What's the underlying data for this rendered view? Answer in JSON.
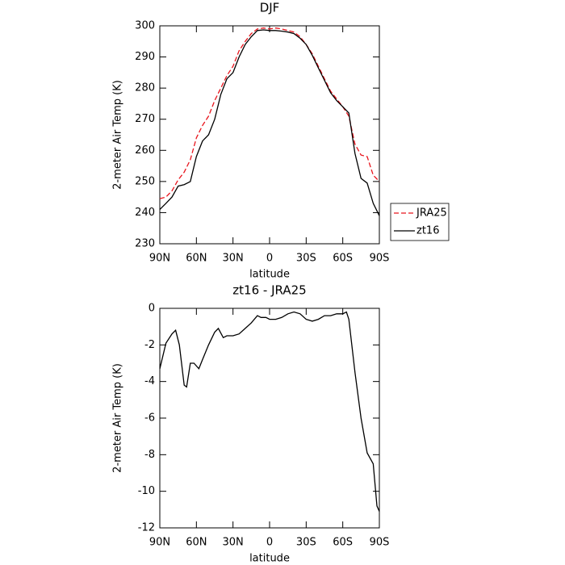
{
  "chart_data": [
    {
      "type": "line",
      "title": "DJF",
      "xlabel": "latitude",
      "ylabel": "2-meter Air Temp (K)",
      "x": [
        90,
        85,
        80,
        75,
        70,
        65,
        60,
        55,
        50,
        45,
        40,
        35,
        30,
        25,
        20,
        15,
        10,
        5,
        0,
        -5,
        -10,
        -15,
        -20,
        -25,
        -30,
        -35,
        -40,
        -45,
        -50,
        -55,
        -60,
        -65,
        -70,
        -75,
        -80,
        -85,
        -90
      ],
      "series": [
        {
          "name": "JRA25",
          "color": "#e8141c",
          "linestyle": "dashed",
          "values": [
            244.5,
            245,
            247,
            250.5,
            253,
            257,
            264,
            268,
            271,
            276,
            280,
            284,
            287,
            292,
            295,
            297.5,
            299,
            299.3,
            299,
            299.3,
            299,
            298.5,
            298,
            296.5,
            294,
            291,
            287,
            283,
            279,
            276.5,
            274,
            271,
            262,
            258.5,
            258,
            252,
            250
          ]
        },
        {
          "name": "zt16",
          "color": "#000000",
          "linestyle": "solid",
          "values": [
            241,
            243,
            245,
            248.5,
            249,
            250,
            258,
            263,
            265,
            270,
            278,
            283,
            285,
            290,
            294,
            296.5,
            298.5,
            298.7,
            298.5,
            298.5,
            298.3,
            298,
            297.5,
            296,
            294,
            290.5,
            286.5,
            282.5,
            278.5,
            276,
            274,
            272,
            259,
            251,
            249.5,
            243,
            239
          ]
        }
      ],
      "xlim": [
        90,
        -90
      ],
      "xticks": [
        {
          "value": 90,
          "label": "90N"
        },
        {
          "value": 60,
          "label": "60N"
        },
        {
          "value": 30,
          "label": "30N"
        },
        0,
        {
          "value": -30,
          "label": "30S"
        },
        {
          "value": -60,
          "label": "60S"
        },
        {
          "value": -90,
          "label": "90S"
        }
      ],
      "ylim": [
        230,
        300
      ],
      "yticks": [
        230,
        240,
        250,
        260,
        270,
        280,
        290,
        300
      ],
      "legend": "right"
    },
    {
      "type": "line",
      "title": "zt16 - JRA25",
      "xlabel": "latitude",
      "ylabel": "2-meter Air Temp (K)",
      "x": [
        90,
        85,
        80,
        77,
        74,
        70,
        68,
        65,
        62,
        58,
        55,
        50,
        45,
        42,
        38,
        35,
        30,
        25,
        20,
        15,
        10,
        7,
        3,
        0,
        -5,
        -10,
        -15,
        -20,
        -25,
        -30,
        -35,
        -40,
        -45,
        -50,
        -55,
        -60,
        -63,
        -65,
        -70,
        -75,
        -80,
        -85,
        -88,
        -90
      ],
      "values": [
        -3.3,
        -1.9,
        -1.4,
        -1.2,
        -2,
        -4.2,
        -4.3,
        -3,
        -3,
        -3.3,
        -2.8,
        -2,
        -1.3,
        -1.1,
        -1.6,
        -1.5,
        -1.5,
        -1.4,
        -1.1,
        -0.8,
        -0.4,
        -0.5,
        -0.5,
        -0.6,
        -0.6,
        -0.5,
        -0.3,
        -0.2,
        -0.3,
        -0.6,
        -0.7,
        -0.6,
        -0.4,
        -0.4,
        -0.3,
        -0.3,
        -0.2,
        -0.6,
        -3.5,
        -6,
        -7.9,
        -8.5,
        -10.8,
        -11.1
      ],
      "color": "#000000",
      "xlim": [
        90,
        -90
      ],
      "xticks": [
        {
          "value": 90,
          "label": "90N"
        },
        {
          "value": 60,
          "label": "60N"
        },
        {
          "value": 30,
          "label": "30N"
        },
        0,
        {
          "value": -30,
          "label": "30S"
        },
        {
          "value": -60,
          "label": "60S"
        },
        {
          "value": -90,
          "label": "90S"
        }
      ],
      "ylim": [
        -12,
        0
      ],
      "yticks": [
        -12,
        -10,
        -8,
        -6,
        -4,
        -2,
        0
      ]
    }
  ]
}
